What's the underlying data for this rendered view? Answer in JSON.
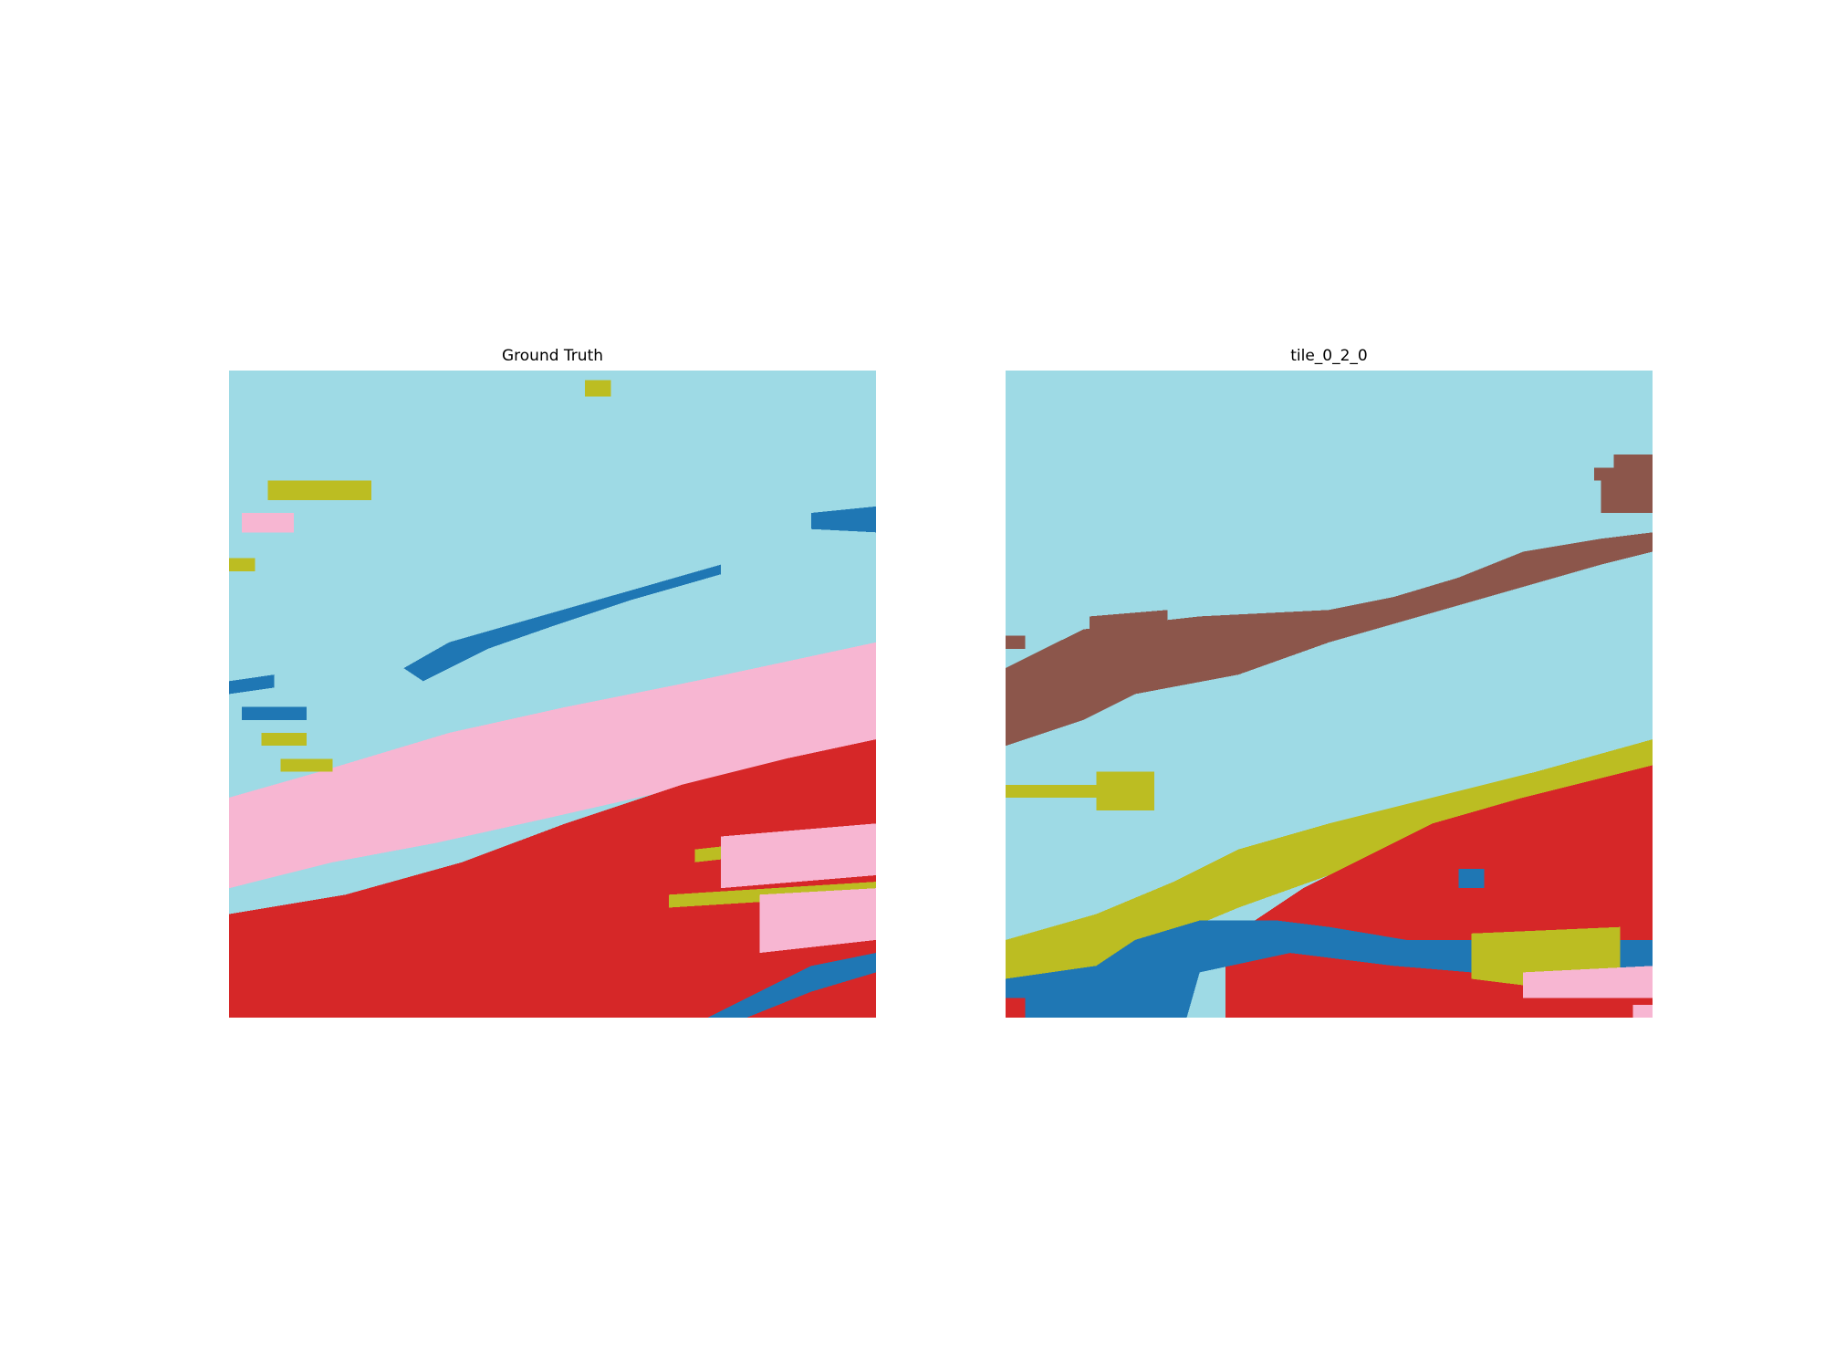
{
  "chart_data": [
    {
      "type": "heatmap",
      "title": "Ground Truth",
      "xlabel": "",
      "ylabel": "",
      "axes": "off",
      "grid": false,
      "colormap": "tab20 (categorical)",
      "palette": {
        "light-blue": "#9edae5",
        "blue": "#1f77b4",
        "olive": "#bcbd22",
        "pink": "#f7b6d2",
        "red": "#d62728",
        "orange": "#ffbb78"
      },
      "background_class": "light-blue",
      "regions": [
        {
          "cls": "pink",
          "pts": [
            [
              0,
              0.66
            ],
            [
              0.14,
              0.62
            ],
            [
              0.34,
              0.56
            ],
            [
              0.52,
              0.52
            ],
            [
              0.72,
              0.48
            ],
            [
              1,
              0.42
            ],
            [
              1,
              0.57
            ],
            [
              0.72,
              0.64
            ],
            [
              0.5,
              0.69
            ],
            [
              0.32,
              0.73
            ],
            [
              0.16,
              0.76
            ],
            [
              0,
              0.8
            ]
          ]
        },
        {
          "cls": "red",
          "pts": [
            [
              0,
              0.84
            ],
            [
              0.18,
              0.81
            ],
            [
              0.36,
              0.76
            ],
            [
              0.52,
              0.7
            ],
            [
              0.7,
              0.64
            ],
            [
              0.86,
              0.6
            ],
            [
              1,
              0.57
            ],
            [
              1,
              1
            ],
            [
              0,
              1
            ]
          ]
        },
        {
          "cls": "blue",
          "pts": [
            [
              0.27,
              0.46
            ],
            [
              0.34,
              0.42
            ],
            [
              0.48,
              0.38
            ],
            [
              0.62,
              0.34
            ],
            [
              0.76,
              0.3
            ],
            [
              0.76,
              0.315
            ],
            [
              0.62,
              0.355
            ],
            [
              0.5,
              0.395
            ],
            [
              0.4,
              0.43
            ],
            [
              0.3,
              0.48
            ]
          ]
        },
        {
          "cls": "blue",
          "pts": [
            [
              0.9,
              0.22
            ],
            [
              1,
              0.21
            ],
            [
              1,
              0.25
            ],
            [
              0.9,
              0.245
            ]
          ]
        },
        {
          "cls": "blue",
          "pts": [
            [
              0,
              0.48
            ],
            [
              0.07,
              0.47
            ],
            [
              0.07,
              0.49
            ],
            [
              0,
              0.5
            ]
          ]
        },
        {
          "cls": "blue",
          "pts": [
            [
              0.02,
              0.52
            ],
            [
              0.12,
              0.52
            ],
            [
              0.12,
              0.54
            ],
            [
              0.02,
              0.54
            ]
          ]
        },
        {
          "cls": "blue",
          "pts": [
            [
              0.74,
              1
            ],
            [
              0.9,
              0.92
            ],
            [
              1,
              0.9
            ],
            [
              1,
              0.93
            ],
            [
              0.9,
              0.96
            ],
            [
              0.8,
              1
            ]
          ]
        },
        {
          "cls": "olive",
          "pts": [
            [
              0.06,
              0.17
            ],
            [
              0.22,
              0.17
            ],
            [
              0.22,
              0.2
            ],
            [
              0.06,
              0.2
            ]
          ]
        },
        {
          "cls": "olive",
          "pts": [
            [
              0,
              0.29
            ],
            [
              0.04,
              0.29
            ],
            [
              0.04,
              0.31
            ],
            [
              0,
              0.31
            ]
          ]
        },
        {
          "cls": "olive",
          "pts": [
            [
              0.55,
              0.015
            ],
            [
              0.59,
              0.015
            ],
            [
              0.59,
              0.04
            ],
            [
              0.55,
              0.04
            ]
          ]
        },
        {
          "cls": "olive",
          "pts": [
            [
              0.08,
              0.6
            ],
            [
              0.16,
              0.6
            ],
            [
              0.16,
              0.62
            ],
            [
              0.08,
              0.62
            ]
          ]
        },
        {
          "cls": "olive",
          "pts": [
            [
              0.05,
              0.56
            ],
            [
              0.12,
              0.56
            ],
            [
              0.12,
              0.58
            ],
            [
              0.05,
              0.58
            ]
          ]
        },
        {
          "cls": "olive",
          "pts": [
            [
              0.68,
              0.81
            ],
            [
              1,
              0.79
            ],
            [
              1,
              0.81
            ],
            [
              0.68,
              0.83
            ]
          ]
        },
        {
          "cls": "olive",
          "pts": [
            [
              0.72,
              0.74
            ],
            [
              0.9,
              0.72
            ],
            [
              0.9,
              0.74
            ],
            [
              0.72,
              0.76
            ]
          ]
        },
        {
          "cls": "pink",
          "pts": [
            [
              0.02,
              0.22
            ],
            [
              0.1,
              0.22
            ],
            [
              0.1,
              0.25
            ],
            [
              0.02,
              0.25
            ]
          ]
        },
        {
          "cls": "pink",
          "pts": [
            [
              0.76,
              0.72
            ],
            [
              1,
              0.7
            ],
            [
              1,
              0.78
            ],
            [
              0.76,
              0.8
            ]
          ]
        },
        {
          "cls": "pink",
          "pts": [
            [
              0.82,
              0.81
            ],
            [
              1,
              0.8
            ],
            [
              1,
              0.88
            ],
            [
              0.82,
              0.9
            ]
          ]
        }
      ]
    },
    {
      "type": "heatmap",
      "title": "tile_0_2_0",
      "xlabel": "",
      "ylabel": "",
      "axes": "off",
      "grid": false,
      "colormap": "tab20 (categorical)",
      "palette": {
        "light-blue": "#9edae5",
        "brown": "#8c564b",
        "olive": "#bcbd22",
        "blue": "#1f77b4",
        "red": "#d62728",
        "pink": "#f7b6d2"
      },
      "background_class": "light-blue",
      "regions": [
        {
          "cls": "brown",
          "pts": [
            [
              0,
              0.46
            ],
            [
              0.12,
              0.4
            ],
            [
              0.3,
              0.38
            ],
            [
              0.5,
              0.37
            ],
            [
              0.6,
              0.35
            ],
            [
              0.7,
              0.32
            ],
            [
              0.8,
              0.28
            ],
            [
              0.92,
              0.26
            ],
            [
              1,
              0.25
            ],
            [
              1,
              0.28
            ],
            [
              0.92,
              0.3
            ],
            [
              0.78,
              0.34
            ],
            [
              0.64,
              0.38
            ],
            [
              0.5,
              0.42
            ],
            [
              0.36,
              0.47
            ],
            [
              0.2,
              0.5
            ],
            [
              0.12,
              0.54
            ],
            [
              0,
              0.58
            ]
          ]
        },
        {
          "cls": "brown",
          "pts": [
            [
              0.13,
              0.38
            ],
            [
              0.25,
              0.37
            ],
            [
              0.25,
              0.41
            ],
            [
              0.13,
              0.41
            ]
          ]
        },
        {
          "cls": "brown",
          "pts": [
            [
              0,
              0.41
            ],
            [
              0.03,
              0.41
            ],
            [
              0.03,
              0.43
            ],
            [
              0,
              0.43
            ]
          ]
        },
        {
          "cls": "brown",
          "pts": [
            [
              0.91,
              0.15
            ],
            [
              0.94,
              0.15
            ],
            [
              0.94,
              0.13
            ],
            [
              1,
              0.13
            ],
            [
              1,
              0.22
            ],
            [
              0.92,
              0.22
            ],
            [
              0.92,
              0.17
            ],
            [
              0.91,
              0.17
            ]
          ]
        },
        {
          "cls": "olive",
          "pts": [
            [
              0,
              0.88
            ],
            [
              0.14,
              0.84
            ],
            [
              0.26,
              0.79
            ],
            [
              0.36,
              0.74
            ],
            [
              0.5,
              0.7
            ],
            [
              0.66,
              0.66
            ],
            [
              0.82,
              0.62
            ],
            [
              1,
              0.57
            ],
            [
              1,
              0.62
            ],
            [
              0.82,
              0.67
            ],
            [
              0.66,
              0.72
            ],
            [
              0.5,
              0.78
            ],
            [
              0.36,
              0.83
            ],
            [
              0.24,
              0.88
            ],
            [
              0.12,
              0.93
            ],
            [
              0,
              0.96
            ]
          ]
        },
        {
          "cls": "olive",
          "pts": [
            [
              0,
              0.64
            ],
            [
              0.14,
              0.64
            ],
            [
              0.14,
              0.62
            ],
            [
              0.23,
              0.62
            ],
            [
              0.23,
              0.68
            ],
            [
              0.14,
              0.68
            ],
            [
              0.14,
              0.66
            ],
            [
              0,
              0.66
            ]
          ]
        },
        {
          "cls": "red",
          "pts": [
            [
              0.34,
              0.88
            ],
            [
              0.46,
              0.8
            ],
            [
              0.56,
              0.75
            ],
            [
              0.66,
              0.7
            ],
            [
              0.8,
              0.66
            ],
            [
              1,
              0.61
            ],
            [
              1,
              1
            ],
            [
              0.34,
              1
            ]
          ]
        },
        {
          "cls": "blue",
          "pts": [
            [
              0,
              0.94
            ],
            [
              0.14,
              0.92
            ],
            [
              0.2,
              0.88
            ],
            [
              0.3,
              0.85
            ],
            [
              0.42,
              0.85
            ],
            [
              0.5,
              0.86
            ],
            [
              0.62,
              0.88
            ],
            [
              0.72,
              0.88
            ],
            [
              0.72,
              0.93
            ],
            [
              0.6,
              0.92
            ],
            [
              0.44,
              0.9
            ],
            [
              0.3,
              0.93
            ],
            [
              0.28,
              1
            ],
            [
              0,
              1
            ]
          ]
        },
        {
          "cls": "blue",
          "pts": [
            [
              0.7,
              0.77
            ],
            [
              0.74,
              0.77
            ],
            [
              0.74,
              0.8
            ],
            [
              0.7,
              0.8
            ]
          ]
        },
        {
          "cls": "blue",
          "pts": [
            [
              0.93,
              0.88
            ],
            [
              1,
              0.88
            ],
            [
              1,
              0.93
            ],
            [
              0.93,
              0.93
            ]
          ]
        },
        {
          "cls": "red",
          "pts": [
            [
              0,
              0.97
            ],
            [
              0.03,
              0.97
            ],
            [
              0.03,
              1
            ],
            [
              0,
              1
            ]
          ]
        },
        {
          "cls": "olive",
          "pts": [
            [
              0.72,
              0.87
            ],
            [
              0.95,
              0.86
            ],
            [
              0.95,
              0.94
            ],
            [
              0.88,
              0.96
            ],
            [
              0.72,
              0.94
            ]
          ]
        },
        {
          "cls": "pink",
          "pts": [
            [
              0.8,
              0.93
            ],
            [
              1,
              0.92
            ],
            [
              1,
              0.97
            ],
            [
              0.8,
              0.97
            ]
          ]
        },
        {
          "cls": "pink",
          "pts": [
            [
              0.97,
              0.98
            ],
            [
              1,
              0.98
            ],
            [
              1,
              1
            ],
            [
              0.97,
              1
            ]
          ]
        }
      ]
    }
  ]
}
